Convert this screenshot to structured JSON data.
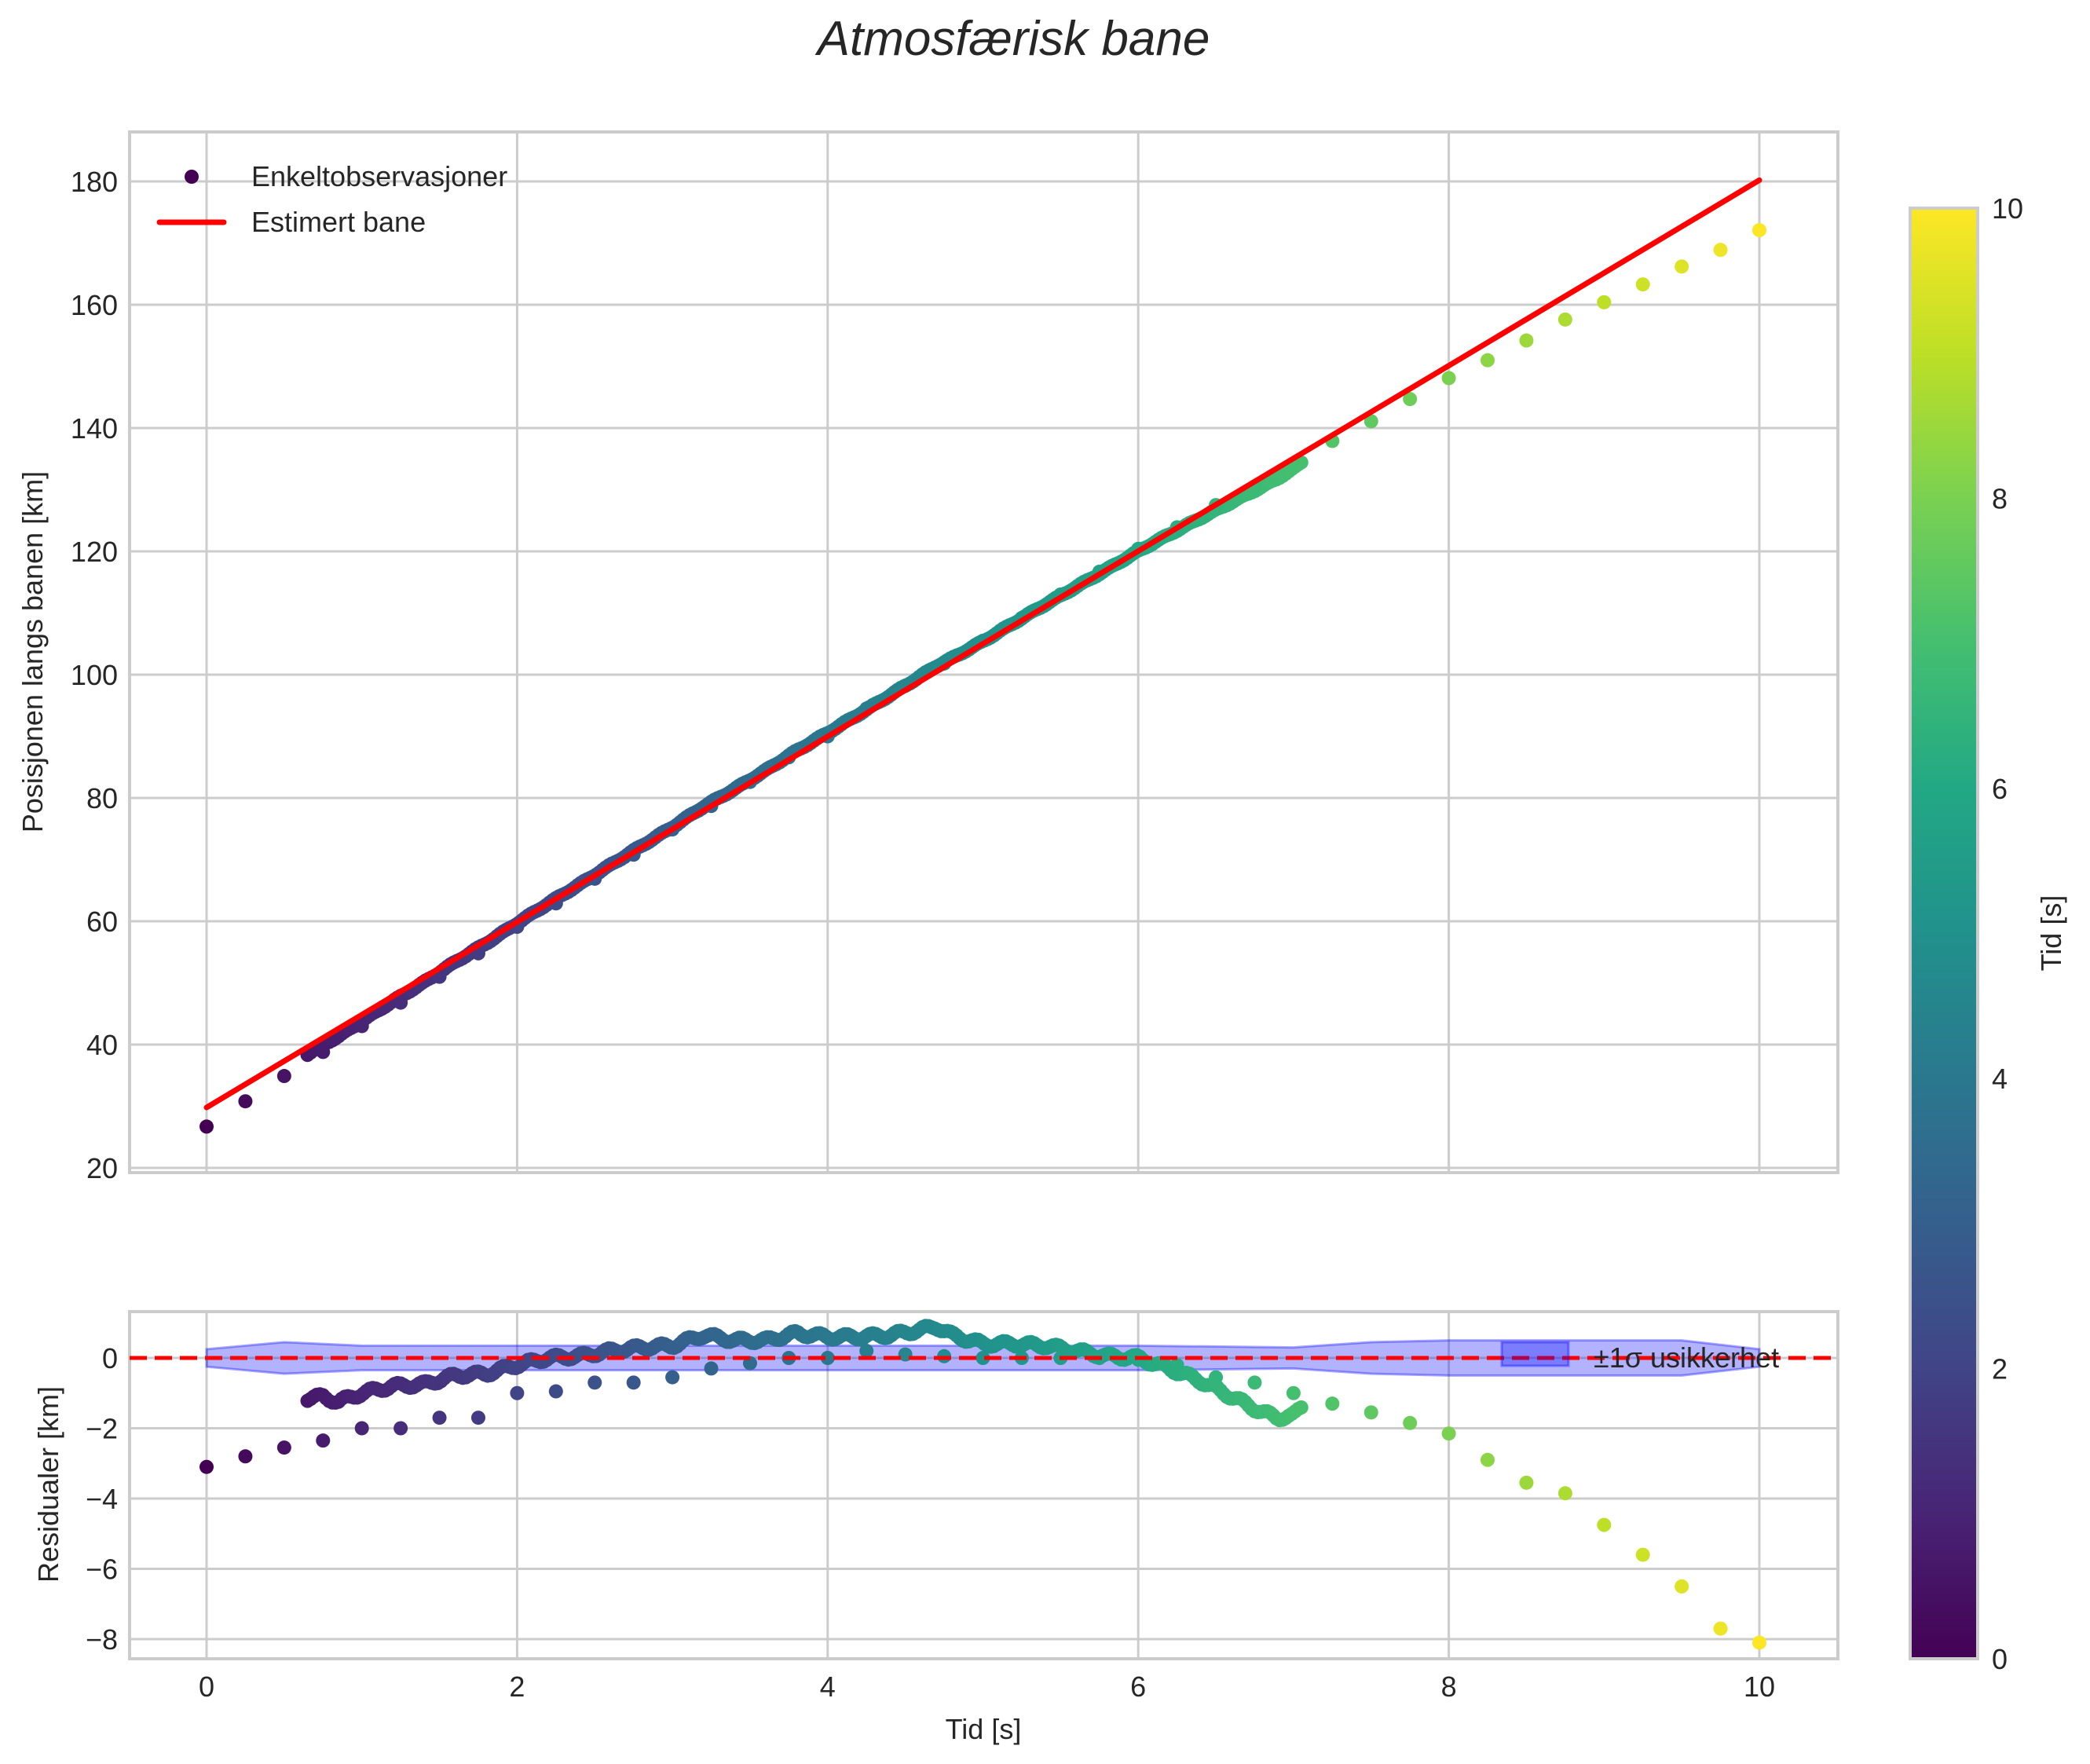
{
  "title": "Atmosfærisk bane",
  "colors": {
    "estimate_line": "#ff0000",
    "zero_line": "#ff0000",
    "sigma_band": "#0000ff",
    "grid": "#cccccc",
    "text": "#262626"
  },
  "chart_data": [
    {
      "panel": "main",
      "type": "scatter",
      "title": "Atmosfærisk bane",
      "xlabel": "",
      "ylabel": "Posisjonen langs banen [km]",
      "xlim": [
        -0.5,
        10.5
      ],
      "ylim": [
        19,
        188
      ],
      "xticks": [
        0,
        2,
        4,
        6,
        8,
        10
      ],
      "yticks": [
        20,
        40,
        60,
        80,
        100,
        120,
        140,
        160,
        180
      ],
      "ytick_labels": [
        "20",
        "40",
        "60",
        "80",
        "100",
        "120",
        "140",
        "160",
        "180"
      ],
      "grid": true,
      "legend": {
        "position": "upper left",
        "entries": [
          "Enkeltobservasjoner",
          "Estimert bane"
        ]
      },
      "series": [
        {
          "name": "Estimert bane",
          "kind": "line",
          "x": [
            0,
            10
          ],
          "y": [
            29.8,
            180.2
          ]
        },
        {
          "name": "Enkeltobservasjoner (sparse)",
          "kind": "scatter",
          "color_by": "time",
          "x": [
            0,
            0.25,
            0.5,
            0.75,
            1.0,
            1.25,
            1.5,
            1.75,
            2.0,
            2.25,
            2.5,
            2.75,
            3.0,
            3.25,
            3.5,
            3.75,
            4.0,
            4.25,
            4.5,
            4.75,
            5.0,
            5.25,
            5.5,
            5.75,
            6.0,
            6.25,
            6.5,
            6.75,
            7.0,
            7.25,
            7.5,
            7.75,
            8.0,
            8.25,
            8.5,
            8.75,
            9.0,
            9.25,
            9.5,
            9.75,
            10.0
          ],
          "y": [
            26.7,
            30.8,
            34.9,
            38.8,
            43.0,
            46.8,
            51.0,
            54.8,
            59.1,
            62.9,
            66.9,
            70.8,
            74.9,
            78.7,
            82.6,
            86.6,
            90.0,
            94.5,
            98.2,
            101.8,
            105.5,
            109.2,
            113.0,
            116.7,
            120.4,
            123.9,
            127.5,
            130.5,
            133.8,
            137.9,
            141.1,
            144.7,
            148.1,
            151.0,
            154.2,
            157.6,
            160.4,
            163.3,
            166.2,
            168.9,
            172.1
          ]
        },
        {
          "name": "Enkeltobservasjoner (dense)",
          "kind": "scatter",
          "color_by": "time",
          "x_range": [
            0.65,
            7.05
          ],
          "note": "dense track of ~300 points closely following the estimate; slightly below line for t<2, slightly above for 3-5, and falling below after 6.2 to ~1.7 km under at t≈6.9",
          "x": [
            0.65,
            0.75,
            0.85,
            1.0,
            1.2,
            1.4,
            1.6,
            1.8,
            2.0,
            2.2,
            2.4,
            2.6,
            2.8,
            3.0,
            3.2,
            3.4,
            3.6,
            3.8,
            4.0,
            4.2,
            4.4,
            4.6,
            4.8,
            5.0,
            5.2,
            5.4,
            5.6,
            5.8,
            6.0,
            6.2,
            6.4,
            6.6,
            6.8,
            6.9,
            7.0,
            7.05
          ],
          "y": [
            38.5,
            40.0,
            41.3,
            43.5,
            46.6,
            49.8,
            53.2,
            56.4,
            59.6,
            63.1,
            66.4,
            69.6,
            72.8,
            76.2,
            79.4,
            82.4,
            85.6,
            88.8,
            91.8,
            94.8,
            97.9,
            101.0,
            103.9,
            106.6,
            109.6,
            112.7,
            115.5,
            118.5,
            120.8,
            123.6,
            125.9,
            128.3,
            130.7,
            132.0,
            133.8,
            134.8
          ]
        }
      ]
    },
    {
      "panel": "residuals",
      "type": "scatter",
      "xlabel": "Tid [s]",
      "ylabel": "Residualer [km]",
      "xlim": [
        -0.5,
        10.5
      ],
      "ylim": [
        -8.6,
        1.3
      ],
      "xticks": [
        0,
        2,
        4,
        6,
        8,
        10
      ],
      "yticks": [
        0,
        -2,
        -4,
        -6,
        -8
      ],
      "ytick_labels": [
        "0",
        "−2",
        "−4",
        "−6",
        "−8"
      ],
      "grid": true,
      "legend": {
        "position": "upper right",
        "entries": [
          "±1σ usikkerhet"
        ]
      },
      "series": [
        {
          "name": "Null-linje",
          "kind": "hline",
          "y": 0,
          "style": "dashed"
        },
        {
          "name": "±1σ usikkerhet",
          "kind": "band",
          "x": [
            0,
            0.5,
            1.0,
            2.0,
            3.0,
            4.0,
            5.0,
            6.0,
            7.0,
            7.5,
            8.0,
            9.0,
            9.5,
            10.0
          ],
          "upper": [
            0.25,
            0.45,
            0.35,
            0.35,
            0.35,
            0.35,
            0.35,
            0.35,
            0.3,
            0.45,
            0.5,
            0.5,
            0.5,
            0.25
          ],
          "lower": [
            -0.25,
            -0.45,
            -0.35,
            -0.35,
            -0.35,
            -0.35,
            -0.35,
            -0.35,
            -0.3,
            -0.45,
            -0.5,
            -0.5,
            -0.5,
            -0.25
          ]
        },
        {
          "name": "Residualer (sparse)",
          "kind": "scatter",
          "color_by": "time",
          "x": [
            0,
            0.25,
            0.5,
            0.75,
            1.0,
            1.25,
            1.5,
            1.75,
            2.0,
            2.25,
            2.5,
            2.75,
            3.0,
            3.25,
            3.5,
            3.75,
            4.0,
            4.25,
            4.5,
            4.75,
            5.0,
            5.25,
            5.5,
            5.75,
            6.0,
            6.25,
            6.5,
            6.75,
            7.0,
            7.25,
            7.5,
            7.75,
            8.0,
            8.25,
            8.5,
            8.75,
            9.0,
            9.25,
            9.5,
            9.75,
            10.0
          ],
          "y": [
            -3.1,
            -2.8,
            -2.55,
            -2.35,
            -2.0,
            -2.0,
            -1.7,
            -1.7,
            -1.0,
            -0.95,
            -0.7,
            -0.7,
            -0.55,
            -0.3,
            -0.15,
            0.0,
            0.0,
            0.2,
            0.1,
            0.05,
            0.0,
            0.0,
            0.0,
            0.0,
            -0.05,
            -0.2,
            -0.55,
            -0.7,
            -1.0,
            -1.3,
            -1.55,
            -1.85,
            -2.15,
            -2.9,
            -3.55,
            -3.85,
            -4.75,
            -5.6,
            -6.5,
            -7.7,
            -8.1
          ]
        },
        {
          "name": "Residualer (dense)",
          "kind": "scatter",
          "color_by": "time",
          "x": [
            0.65,
            0.75,
            0.85,
            1.0,
            1.2,
            1.4,
            1.6,
            1.8,
            2.0,
            2.2,
            2.4,
            2.6,
            2.8,
            3.0,
            3.2,
            3.4,
            3.6,
            3.8,
            4.0,
            4.2,
            4.4,
            4.6,
            4.7,
            4.8,
            5.0,
            5.2,
            5.4,
            5.6,
            5.8,
            6.0,
            6.2,
            6.4,
            6.6,
            6.8,
            6.9,
            7.0,
            7.05
          ],
          "y": [
            -1.15,
            -1.1,
            -1.25,
            -1.0,
            -0.8,
            -0.75,
            -0.5,
            -0.45,
            -0.2,
            0.0,
            0.05,
            0.2,
            0.3,
            0.35,
            0.65,
            0.5,
            0.5,
            0.7,
            0.6,
            0.6,
            0.65,
            0.8,
            0.9,
            0.65,
            0.4,
            0.4,
            0.35,
            0.2,
            0.05,
            0.0,
            -0.3,
            -0.65,
            -1.1,
            -1.55,
            -1.7,
            -1.65,
            -1.4
          ]
        }
      ]
    },
    {
      "panel": "colorbar",
      "type": "heatmap",
      "colormap": "viridis",
      "label": "Tid [s]",
      "range": [
        0,
        10
      ],
      "ticks": [
        0,
        2,
        4,
        6,
        8,
        10
      ]
    }
  ],
  "main": {
    "ylabel": "Posisjonen langs banen [km]",
    "yticks": [
      "20",
      "40",
      "60",
      "80",
      "100",
      "120",
      "140",
      "160",
      "180"
    ],
    "legend": {
      "observations": "Enkeltobservasjoner",
      "estimate": "Estimert bane"
    }
  },
  "residual": {
    "ylabel": "Residualer [km]",
    "yticks": [
      "0",
      "−2",
      "−4",
      "−6",
      "−8"
    ],
    "legend": {
      "sigma": "±1σ usikkerhet"
    },
    "xlabel": "Tid [s]",
    "xticks": [
      "0",
      "2",
      "4",
      "6",
      "8",
      "10"
    ]
  },
  "colorbar": {
    "label": "Tid [s]",
    "ticks": [
      "0",
      "2",
      "4",
      "6",
      "8",
      "10"
    ]
  }
}
